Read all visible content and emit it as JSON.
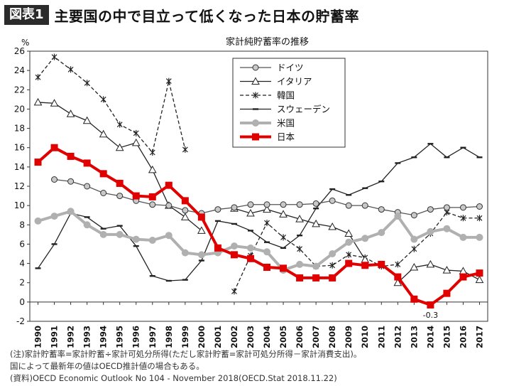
{
  "header": {
    "badge": "図表1",
    "title": "主要国の中で目立って低くなった日本の貯蓄率"
  },
  "notes": [
    "(注)家計貯蓄率=家計貯蓄÷家計可処分所得(ただし家計貯蓄=家計可処分所得－家計消費支出)。",
    "国によって最新年の値はOECD推計値の場合もある。",
    "(資料)OECD Economic Outlook No 104 - November 2018(OECD.Stat 2018.11.22)"
  ],
  "chart_data": {
    "type": "line",
    "title": "家計純貯蓄率の推移",
    "ylabel": "%",
    "ylim": [
      -2,
      26
    ],
    "yticks": [
      -2,
      0,
      2,
      4,
      6,
      8,
      10,
      12,
      14,
      16,
      18,
      20,
      22,
      24,
      26
    ],
    "x": [
      1990,
      1991,
      1992,
      1993,
      1994,
      1995,
      1996,
      1997,
      1998,
      1999,
      2000,
      2001,
      2002,
      2003,
      2004,
      2005,
      2006,
      2007,
      2008,
      2009,
      2010,
      2011,
      2012,
      2013,
      2014,
      2015,
      2016,
      2017
    ],
    "grid": false,
    "legend_position": "top-center",
    "annotations": [
      {
        "text": "-0.3",
        "x": 2014,
        "y": -0.3
      }
    ],
    "series": [
      {
        "name": "ドイツ",
        "color": "#555555",
        "marker": "circle",
        "dash": "solid",
        "values": [
          null,
          12.7,
          12.5,
          12.0,
          11.3,
          11.0,
          10.5,
          10.1,
          10.0,
          9.5,
          9.2,
          9.6,
          9.8,
          10.1,
          10.1,
          10.1,
          10.1,
          10.2,
          10.5,
          10.0,
          10.0,
          9.6,
          9.3,
          9.0,
          9.6,
          9.8,
          9.8,
          9.9
        ]
      },
      {
        "name": "イタリア",
        "color": "#222222",
        "marker": "triangle",
        "dash": "solid",
        "values": [
          20.7,
          20.6,
          19.5,
          18.8,
          17.4,
          16.0,
          16.5,
          13.7,
          10.0,
          8.8,
          7.4,
          null,
          9.7,
          9.2,
          9.6,
          9.1,
          8.6,
          8.1,
          7.8,
          7.1,
          4.4,
          null,
          2.0,
          3.6,
          3.9,
          3.3,
          3.2,
          2.3
        ]
      },
      {
        "name": "韓国",
        "color": "#222222",
        "marker": "x",
        "dash": "dashed",
        "values": [
          23.3,
          25.4,
          24.1,
          22.7,
          21.0,
          18.4,
          17.5,
          15.5,
          22.9,
          15.8,
          null,
          null,
          1.1,
          4.8,
          8.2,
          6.7,
          5.5,
          3.7,
          3.8,
          4.9,
          4.6,
          3.7,
          3.9,
          5.5,
          7.1,
          9.3,
          8.7,
          8.7
        ]
      },
      {
        "name": "スウェーデン",
        "color": "#222222",
        "marker": "dash",
        "dash": "solid",
        "values": [
          3.5,
          6.0,
          9.2,
          8.8,
          7.6,
          7.9,
          5.8,
          2.7,
          2.2,
          2.3,
          4.3,
          8.4,
          8.1,
          7.4,
          6.2,
          5.6,
          6.9,
          9.7,
          11.7,
          11.1,
          11.8,
          12.5,
          14.4,
          15.0,
          16.4,
          15.0,
          16.0,
          15.0
        ]
      },
      {
        "name": "米国",
        "color": "#b0b0b0",
        "marker": "circle",
        "dash": "solid",
        "values": [
          8.4,
          8.9,
          9.4,
          8.0,
          7.0,
          7.0,
          6.5,
          6.4,
          6.9,
          5.1,
          4.9,
          5.1,
          5.8,
          5.6,
          5.2,
          3.3,
          3.9,
          3.7,
          5.0,
          6.2,
          6.6,
          7.2,
          8.9,
          6.5,
          7.3,
          7.6,
          6.7,
          6.7
        ]
      },
      {
        "name": "日本",
        "color": "#e00000",
        "marker": "square",
        "dash": "solid",
        "values": [
          14.5,
          16.0,
          15.1,
          14.4,
          13.3,
          12.3,
          11.0,
          10.9,
          12.1,
          10.5,
          8.8,
          5.6,
          4.9,
          4.5,
          3.6,
          3.5,
          2.5,
          2.5,
          2.5,
          4.0,
          3.8,
          3.9,
          2.6,
          0.3,
          -0.3,
          0.9,
          2.6,
          3.0
        ]
      }
    ]
  }
}
